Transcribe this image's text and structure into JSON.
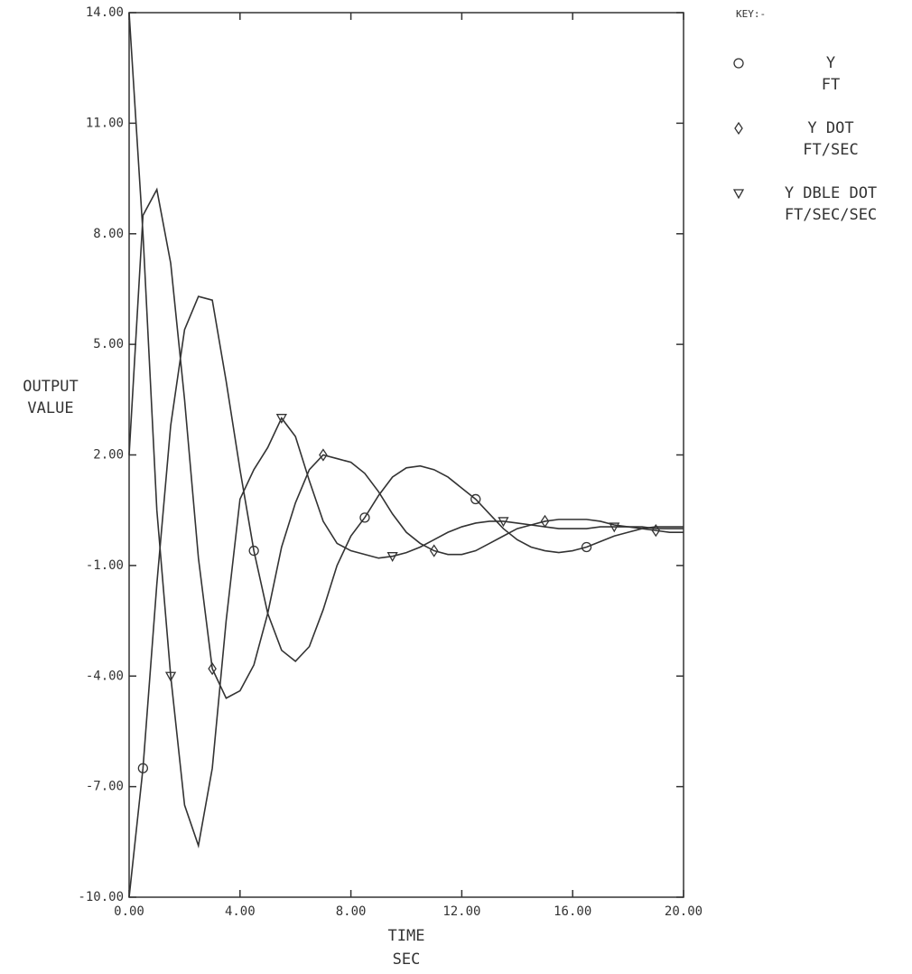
{
  "chart_data": {
    "type": "line",
    "ylabel": [
      "OUTPUT",
      "VALUE"
    ],
    "xlabel": "TIME",
    "xunit": "SEC",
    "legend_title": "KEY:-",
    "x": [
      0,
      0.5,
      1,
      1.5,
      2,
      2.5,
      3,
      3.5,
      4,
      4.5,
      5,
      5.5,
      6,
      6.5,
      7,
      7.5,
      8,
      8.5,
      9,
      9.5,
      10,
      10.5,
      11,
      11.5,
      12,
      12.5,
      13,
      13.5,
      14,
      14.5,
      15,
      15.5,
      16,
      16.5,
      17,
      17.5,
      18,
      18.5,
      19,
      19.5,
      20
    ],
    "series": [
      {
        "name": "Y",
        "unit": "FT",
        "marker": "circle",
        "color": "#333333",
        "values": [
          -10,
          -6.5,
          -1.5,
          2.8,
          5.4,
          6.3,
          6.2,
          4.0,
          1.6,
          -0.6,
          -2.3,
          -3.3,
          -3.6,
          -3.2,
          -2.2,
          -1.0,
          -0.2,
          0.3,
          0.9,
          1.4,
          1.65,
          1.7,
          1.6,
          1.4,
          1.1,
          0.8,
          0.4,
          0.0,
          -0.3,
          -0.5,
          -0.6,
          -0.65,
          -0.6,
          -0.5,
          -0.35,
          -0.2,
          -0.1,
          0.0,
          0.05,
          0.05,
          0.05
        ]
      },
      {
        "name": "Y DOT",
        "unit": "FT/SEC",
        "marker": "diamond",
        "color": "#333333",
        "values": [
          2.0,
          8.5,
          9.2,
          7.2,
          3.5,
          -0.8,
          -3.8,
          -4.6,
          -4.4,
          -3.7,
          -2.3,
          -0.5,
          0.7,
          1.6,
          2.0,
          1.9,
          1.8,
          1.5,
          1.0,
          0.4,
          -0.1,
          -0.4,
          -0.6,
          -0.7,
          -0.7,
          -0.6,
          -0.4,
          -0.2,
          0.0,
          0.1,
          0.2,
          0.25,
          0.25,
          0.25,
          0.2,
          0.1,
          0.05,
          0.0,
          -0.05,
          -0.1,
          -0.1
        ]
      },
      {
        "name": "Y DBLE DOT",
        "unit": "FT/SEC/SEC",
        "marker": "triangle",
        "color": "#333333",
        "values": [
          14,
          8,
          0.5,
          -4.0,
          -7.5,
          -8.6,
          -6.5,
          -2.5,
          0.8,
          1.6,
          2.2,
          3.0,
          2.5,
          1.3,
          0.2,
          -0.4,
          -0.6,
          -0.7,
          -0.8,
          -0.75,
          -0.65,
          -0.5,
          -0.3,
          -0.1,
          0.05,
          0.15,
          0.2,
          0.2,
          0.15,
          0.1,
          0.05,
          0.0,
          0.0,
          0.0,
          0.05,
          0.05,
          0.05,
          0.05,
          0.0,
          0.0,
          0.0
        ]
      }
    ],
    "xlim": [
      0,
      20
    ],
    "xticks": [
      {
        "value": 0,
        "label": "0.00"
      },
      {
        "value": 4,
        "label": "4.00"
      },
      {
        "value": 8,
        "label": "8.00"
      },
      {
        "value": 12,
        "label": "12.00"
      },
      {
        "value": 16,
        "label": "16.00"
      },
      {
        "value": 20,
        "label": "20.00"
      }
    ],
    "ylim": [
      -10,
      14
    ],
    "yticks": [
      {
        "value": -10,
        "label": "-10.00"
      },
      {
        "value": -7,
        "label": "-7.00"
      },
      {
        "value": -4,
        "label": "-4.00"
      },
      {
        "value": -1,
        "label": "-1.00"
      },
      {
        "value": 2,
        "label": "2.00"
      },
      {
        "value": 5,
        "label": "5.00"
      },
      {
        "value": 8,
        "label": "8.00"
      },
      {
        "value": 11,
        "label": "11.00"
      },
      {
        "value": 14,
        "label": "14.00"
      }
    ],
    "grid": false
  }
}
